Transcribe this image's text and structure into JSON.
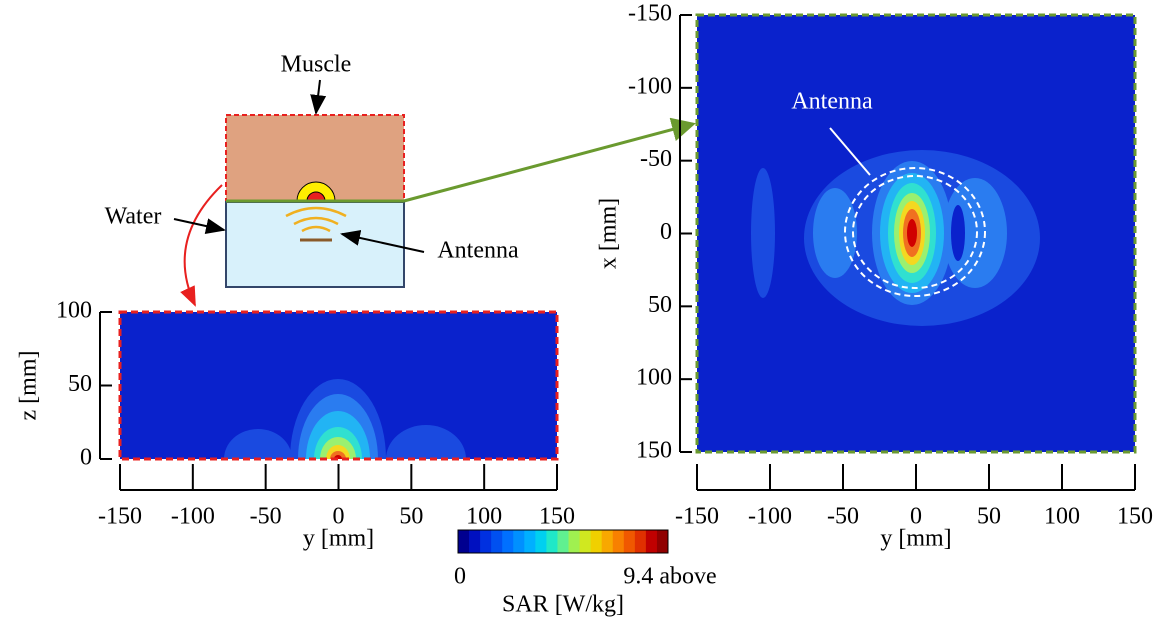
{
  "schematic": {
    "muscle": "Muscle",
    "water": "Water",
    "antenna": "Antenna"
  },
  "chart_data": [
    {
      "type": "heatmap",
      "xlabel": "y [mm]",
      "ylabel": "z [mm]",
      "xlim": [
        -150,
        150
      ],
      "xticks": [
        -150,
        -100,
        -50,
        0,
        50,
        100,
        150
      ],
      "ylim": [
        0,
        100
      ],
      "yticks": [
        0,
        50,
        100
      ],
      "border_color": "#e8201f"
    },
    {
      "type": "heatmap",
      "xlabel": "y [mm]",
      "ylabel": "x [mm]",
      "annotation": "Antenna",
      "xlim": [
        -150,
        150
      ],
      "xticks": [
        -150,
        -100,
        -50,
        0,
        50,
        100,
        150
      ],
      "ylim": [
        150,
        -150
      ],
      "yticks": [
        -150,
        -100,
        -50,
        0,
        50,
        100,
        150
      ],
      "border_color": "#6a9a2f"
    }
  ],
  "colorbar": {
    "label": "SAR [W/kg]",
    "range": [
      0,
      {
        "value": 9.4,
        "label": "9.4 above"
      }
    ],
    "colors": [
      "#00008f",
      "#0010c0",
      "#0030e0",
      "#0050f0",
      "#0070ff",
      "#0090ff",
      "#00b0ff",
      "#00d0f0",
      "#20e8c8",
      "#60f090",
      "#a0f050",
      "#d0e820",
      "#f0d000",
      "#f8a800",
      "#f88000",
      "#f05800",
      "#e03000",
      "#c00000",
      "#900000"
    ]
  }
}
